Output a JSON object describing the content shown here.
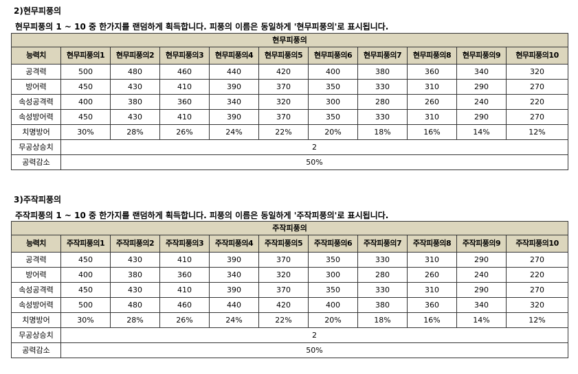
{
  "sections": [
    {
      "heading": "2)현무피풍의",
      "description": "현무피풍의 1 ~ 10 중 한가지를 랜덤하게 획득합니다. 피풍의 이름은 동일하게 '현무피풍의'로 표시됩니다.",
      "table_title": "현무피풍의",
      "columns": [
        "능력치",
        "현무피풍의1",
        "현무피풍의2",
        "현무피풍의3",
        "현무피풍의4",
        "현무피풍의5",
        "현무피풍의6",
        "현무피풍의7",
        "현무피풍의8",
        "현무피풍의9",
        "현무피풍의10"
      ],
      "rows": [
        {
          "label": "공격력",
          "values": [
            "500",
            "480",
            "460",
            "440",
            "420",
            "400",
            "380",
            "360",
            "340",
            "320"
          ]
        },
        {
          "label": "방어력",
          "values": [
            "450",
            "430",
            "410",
            "390",
            "370",
            "350",
            "330",
            "310",
            "290",
            "270"
          ]
        },
        {
          "label": "속성공격력",
          "values": [
            "400",
            "380",
            "360",
            "340",
            "320",
            "300",
            "280",
            "260",
            "240",
            "220"
          ]
        },
        {
          "label": "속성방어력",
          "values": [
            "450",
            "430",
            "410",
            "390",
            "370",
            "350",
            "330",
            "310",
            "290",
            "270"
          ]
        },
        {
          "label": "치명방어",
          "values": [
            "30%",
            "28%",
            "26%",
            "24%",
            "22%",
            "20%",
            "18%",
            "16%",
            "14%",
            "12%"
          ]
        }
      ],
      "merged_rows": [
        {
          "label": "무공상승치",
          "value": "2"
        },
        {
          "label": "공력감소",
          "value": "50%"
        }
      ]
    },
    {
      "heading": "3)주작피풍의",
      "description": "주작피풍의 1 ~ 10 중 한가지를 랜덤하게 획득합니다. 피풍의 이름은 동일하게 '주작피풍의'로 표시됩니다.",
      "table_title": "주작피풍의",
      "columns": [
        "능력치",
        "주작피풍의1",
        "주작피풍의2",
        "주작피풍의3",
        "주작피풍의4",
        "주작피풍의5",
        "주작피풍의6",
        "주작피풍의7",
        "주작피풍의8",
        "주작피풍의9",
        "주작피풍의10"
      ],
      "rows": [
        {
          "label": "공격력",
          "values": [
            "450",
            "430",
            "410",
            "390",
            "370",
            "350",
            "330",
            "310",
            "290",
            "270"
          ]
        },
        {
          "label": "방어력",
          "values": [
            "400",
            "380",
            "360",
            "340",
            "320",
            "300",
            "280",
            "260",
            "240",
            "220"
          ]
        },
        {
          "label": "속성공격력",
          "values": [
            "450",
            "430",
            "410",
            "390",
            "370",
            "350",
            "330",
            "310",
            "290",
            "270"
          ]
        },
        {
          "label": "속성방어력",
          "values": [
            "500",
            "480",
            "460",
            "440",
            "420",
            "400",
            "380",
            "360",
            "340",
            "320"
          ]
        },
        {
          "label": "치명방어",
          "values": [
            "30%",
            "28%",
            "26%",
            "24%",
            "22%",
            "20%",
            "18%",
            "16%",
            "14%",
            "12%"
          ]
        }
      ],
      "merged_rows": [
        {
          "label": "무공상승치",
          "value": "2"
        },
        {
          "label": "공력감소",
          "value": "50%"
        }
      ]
    }
  ]
}
